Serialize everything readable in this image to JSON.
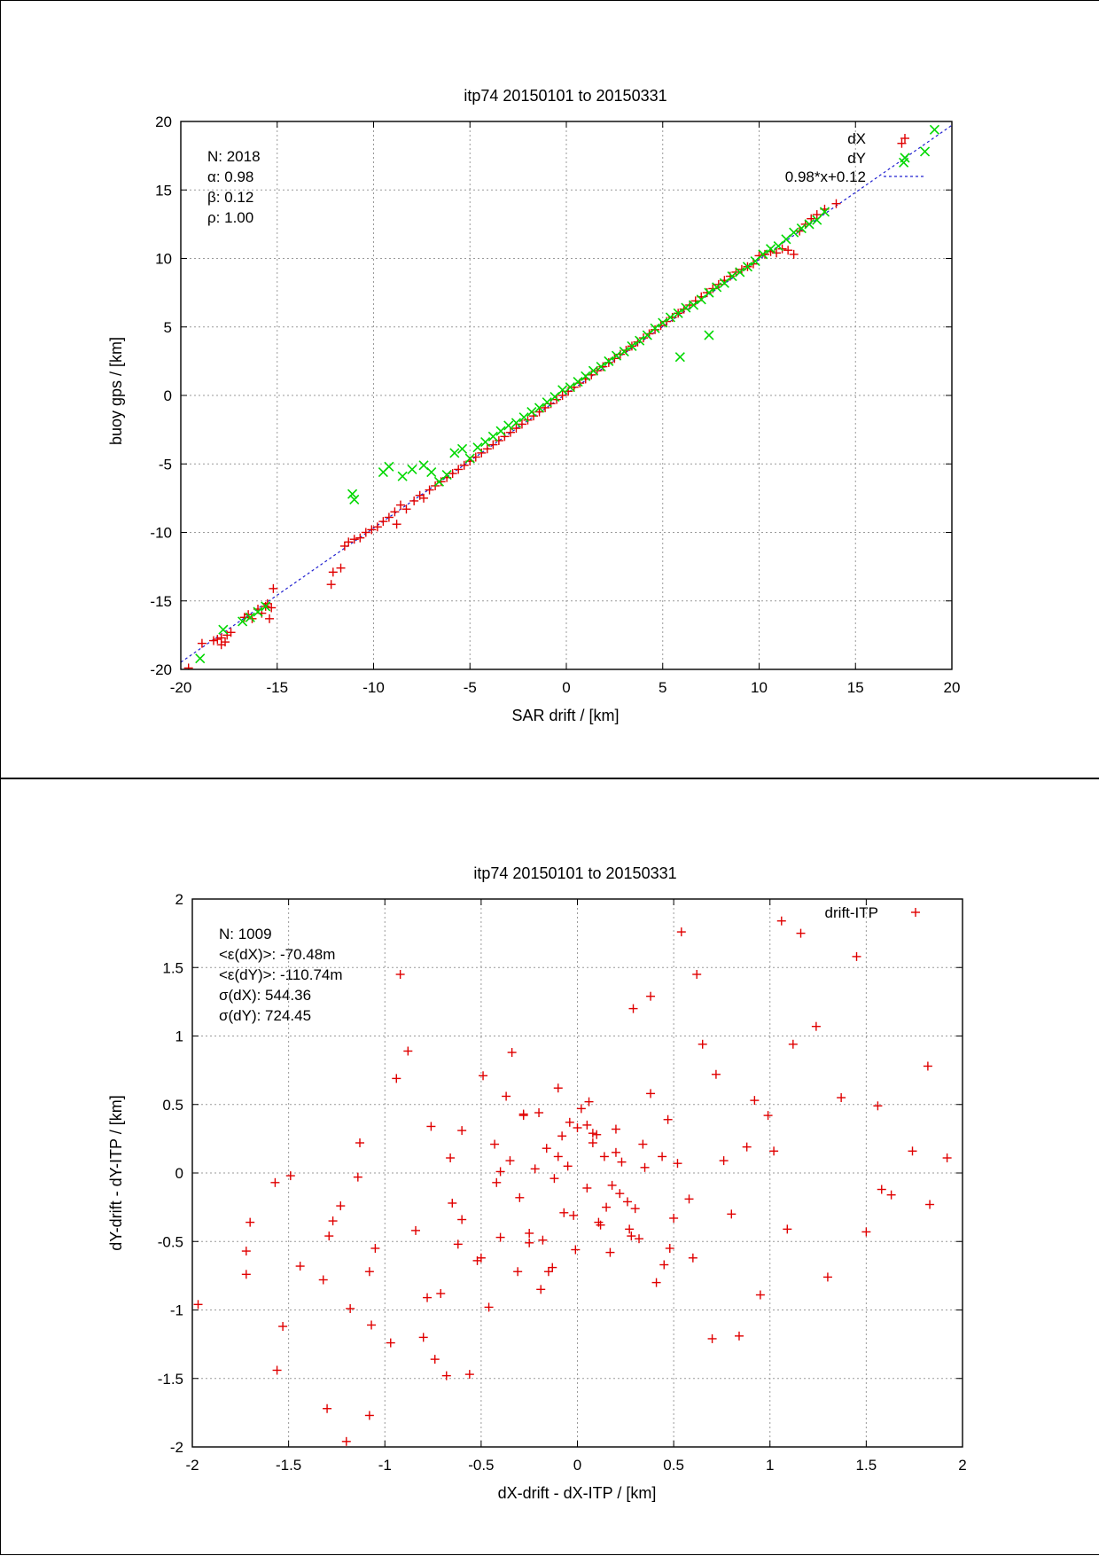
{
  "chart_data": [
    {
      "type": "scatter",
      "title": "itp74 20150101 to 20150331",
      "xlabel": "SAR drift / [km]",
      "ylabel": "buoy gps / [km]",
      "xlim": [
        -20,
        20
      ],
      "ylim": [
        -20,
        20
      ],
      "xticks": [
        -20,
        -15,
        -10,
        -5,
        0,
        5,
        10,
        15,
        20
      ],
      "yticks": [
        -20,
        -15,
        -10,
        -5,
        0,
        5,
        10,
        15,
        20
      ],
      "grid": true,
      "legend_position": "top-right",
      "stats": [
        "N: 2018",
        "α: 0.98",
        "β: 0.12",
        "ρ: 1.00"
      ],
      "fit": {
        "label": "0.98*x+0.12",
        "slope": 0.98,
        "intercept": 0.12,
        "color": "#2020d0"
      },
      "series": [
        {
          "name": "dX",
          "marker": "plus",
          "color": "#e00000",
          "x": [
            -19.6,
            -18.9,
            -18.3,
            -18.1,
            -17.9,
            -17.7,
            -17.9,
            -17.6,
            -17.4,
            -16.7,
            -16.5,
            -16.3,
            -16.0,
            -15.8,
            -15.6,
            -15.5,
            -15.3,
            -15.2,
            -15.4,
            -12.2,
            -12.1,
            -11.7,
            -11.5,
            -11.3,
            -11.0,
            -10.7,
            -10.4,
            -10.1,
            -9.8,
            -9.5,
            -9.2,
            -8.9,
            -8.6,
            -8.3,
            -8.8,
            -7.9,
            -7.6,
            -7.4,
            -7.1,
            -6.8,
            -6.5,
            -6.2,
            -5.9,
            -5.6,
            -5.3,
            -5.0,
            -4.7,
            -4.4,
            -4.1,
            -3.8,
            -3.5,
            -3.2,
            -2.9,
            -2.6,
            -2.3,
            -2.0,
            -1.7,
            -1.4,
            -1.1,
            -0.8,
            -0.5,
            -0.2,
            0.1,
            0.4,
            0.7,
            1.0,
            1.3,
            1.6,
            1.9,
            2.2,
            2.5,
            2.8,
            3.1,
            3.4,
            3.7,
            4.0,
            4.3,
            4.6,
            4.9,
            5.2,
            5.5,
            5.8,
            6.1,
            6.4,
            6.7,
            7.0,
            7.3,
            7.6,
            7.9,
            8.2,
            8.5,
            8.8,
            9.1,
            9.4,
            9.7,
            10.0,
            10.3,
            10.6,
            10.9,
            11.2,
            11.5,
            11.8,
            12.1,
            12.4,
            12.7,
            13.0,
            13.4,
            14.0,
            17.4
          ],
          "y": [
            -19.9,
            -18.1,
            -17.9,
            -17.8,
            -18.2,
            -18.0,
            -17.7,
            -17.5,
            -17.3,
            -16.2,
            -16.0,
            -16.3,
            -15.6,
            -15.9,
            -15.4,
            -15.2,
            -15.5,
            -14.1,
            -16.3,
            -13.8,
            -12.9,
            -12.6,
            -11.0,
            -10.7,
            -10.5,
            -10.4,
            -10.0,
            -9.8,
            -9.6,
            -9.2,
            -8.9,
            -8.5,
            -8.0,
            -8.3,
            -9.4,
            -7.7,
            -7.3,
            -7.5,
            -6.9,
            -6.6,
            -6.3,
            -6.0,
            -5.7,
            -5.4,
            -5.1,
            -4.8,
            -4.5,
            -4.2,
            -3.9,
            -3.6,
            -3.3,
            -3.0,
            -2.7,
            -2.4,
            -2.1,
            -1.8,
            -1.5,
            -1.2,
            -0.9,
            -0.6,
            -0.3,
            0.0,
            0.3,
            0.6,
            0.9,
            1.2,
            1.5,
            1.8,
            2.1,
            2.4,
            2.7,
            3.0,
            3.3,
            3.6,
            3.9,
            4.2,
            4.5,
            4.8,
            5.1,
            5.4,
            5.7,
            6.0,
            6.3,
            6.6,
            6.9,
            7.2,
            7.5,
            7.8,
            8.1,
            8.4,
            8.7,
            9.0,
            9.2,
            9.4,
            9.6,
            10.2,
            10.3,
            10.5,
            10.4,
            10.7,
            10.6,
            10.3,
            12.0,
            12.5,
            12.9,
            13.2,
            13.6,
            14.0,
            18.4
          ]
        },
        {
          "name": "dY",
          "marker": "cross",
          "color": "#00d800",
          "x": [
            -19.0,
            -17.8,
            -16.8,
            -16.4,
            -16.0,
            -15.6,
            -11.1,
            -11.0,
            -9.5,
            -9.2,
            -8.5,
            -8.0,
            -7.4,
            -7.0,
            -6.6,
            -6.2,
            -5.8,
            -5.4,
            -5.0,
            -4.6,
            -4.2,
            -3.8,
            -3.4,
            -3.0,
            -2.6,
            -2.2,
            -1.8,
            -1.4,
            -1.0,
            -0.6,
            -0.2,
            0.2,
            0.6,
            1.0,
            1.4,
            1.8,
            2.2,
            2.6,
            3.0,
            3.4,
            3.8,
            4.2,
            4.6,
            5.0,
            5.4,
            5.8,
            6.2,
            6.6,
            7.0,
            7.4,
            7.8,
            8.2,
            8.6,
            9.0,
            9.4,
            9.8,
            10.2,
            10.6,
            11.0,
            11.4,
            11.8,
            12.2,
            12.6,
            13.0,
            13.4,
            5.9,
            7.4,
            17.5,
            18.6,
            19.1
          ],
          "y": [
            -19.2,
            -17.1,
            -16.5,
            -16.2,
            -15.8,
            -15.4,
            -7.2,
            -7.6,
            -5.6,
            -5.2,
            -5.9,
            -5.4,
            -5.1,
            -5.6,
            -6.3,
            -5.8,
            -4.2,
            -3.9,
            -4.6,
            -3.8,
            -3.4,
            -3.0,
            -2.6,
            -2.2,
            -2.0,
            -1.6,
            -1.2,
            -0.9,
            -0.5,
            -0.1,
            0.4,
            0.6,
            1.0,
            1.4,
            1.8,
            2.1,
            2.5,
            2.9,
            3.2,
            3.6,
            4.0,
            4.4,
            4.9,
            5.3,
            5.7,
            6.0,
            6.4,
            6.6,
            7.0,
            7.5,
            7.9,
            8.2,
            8.7,
            9.0,
            9.4,
            9.8,
            10.3,
            10.7,
            10.9,
            11.4,
            11.9,
            12.2,
            12.5,
            12.8,
            13.4,
            2.8,
            4.4,
            17.0,
            17.8,
            19.4
          ]
        }
      ]
    },
    {
      "type": "scatter",
      "title": "itp74 20150101 to 20150331",
      "xlabel": "dX-drift - dX-ITP / [km]",
      "ylabel": "dY-drift - dY-ITP / [km]",
      "xlim": [
        -2,
        2
      ],
      "ylim": [
        -2,
        2
      ],
      "xticks": [
        -2,
        -1.5,
        -1,
        -0.5,
        0,
        0.5,
        1,
        1.5,
        2
      ],
      "yticks": [
        -2,
        -1.5,
        -1,
        -0.5,
        0,
        0.5,
        1,
        1.5,
        2
      ],
      "grid": true,
      "legend_position": "top-right",
      "stats": [
        "N: 1009",
        "<ε(dX)>:  -70.48m",
        "<ε(dY)>: -110.74m",
        "σ(dX):  544.36",
        "σ(dY):  724.45"
      ],
      "series": [
        {
          "name": "drift-ITP",
          "marker": "plus",
          "color": "#e00000",
          "x": [
            -1.97,
            -1.72,
            -1.72,
            -1.7,
            -1.57,
            -1.56,
            -1.53,
            -1.49,
            -1.44,
            -1.32,
            -1.3,
            -1.29,
            -1.27,
            -1.23,
            -1.2,
            -1.18,
            -1.14,
            -1.13,
            -1.08,
            -1.08,
            -1.07,
            -1.05,
            -0.97,
            -0.94,
            -0.92,
            -0.88,
            -0.84,
            -0.8,
            -0.78,
            -0.76,
            -0.74,
            -0.71,
            -0.68,
            -0.66,
            -0.62,
            -0.6,
            -0.56,
            -0.52,
            -0.49,
            -0.46,
            -0.43,
            -0.4,
            -0.37,
            -0.34,
            -0.31,
            -0.28,
            -0.25,
            -0.22,
            -0.19,
            -0.16,
            -0.13,
            -0.1,
            -0.07,
            -0.04,
            -0.01,
            0.02,
            0.05,
            0.08,
            0.11,
            0.14,
            0.17,
            0.2,
            0.23,
            0.26,
            0.29,
            0.32,
            0.35,
            0.38,
            0.41,
            0.44,
            0.47,
            0.5,
            0.54,
            0.58,
            0.62,
            0.65,
            0.7,
            0.72,
            0.76,
            0.8,
            0.84,
            0.88,
            0.92,
            0.95,
            0.99,
            1.02,
            1.06,
            1.09,
            1.12,
            1.16,
            1.24,
            1.3,
            1.37,
            1.45,
            1.5,
            1.56,
            1.58,
            1.63,
            1.74,
            1.82,
            1.83,
            1.92,
            -0.1,
            0.15,
            0.27,
            -0.2,
            0.6,
            0.05,
            -0.3,
            0.34,
            -0.05,
            0.48,
            -0.42,
            0.1,
            -0.6,
            0.2,
            -0.15,
            0.38,
            -0.25,
            0.0,
            -0.5,
            0.3,
            -0.35,
            0.12,
            -0.08,
            0.22,
            -0.18,
            0.06,
            -0.4,
            0.45,
            -0.65,
            0.52,
            -0.02,
            0.18,
            -0.28,
            0.28,
            -0.12,
            0.08
          ],
          "y": [
            -0.96,
            -0.57,
            -0.74,
            -0.36,
            -0.07,
            -1.44,
            -1.12,
            -0.02,
            -0.68,
            -0.78,
            -1.72,
            -0.46,
            -0.35,
            -0.24,
            -1.96,
            -0.99,
            -0.03,
            0.22,
            -1.77,
            -0.72,
            -1.11,
            -0.55,
            -1.24,
            0.69,
            1.45,
            0.89,
            -0.42,
            -1.2,
            -0.91,
            0.34,
            -1.36,
            -0.88,
            -1.48,
            0.11,
            -0.52,
            0.31,
            -1.47,
            -0.64,
            0.71,
            -0.98,
            0.21,
            -0.47,
            0.56,
            0.88,
            -0.72,
            0.42,
            -0.51,
            0.03,
            -0.85,
            0.18,
            -0.69,
            0.62,
            -0.29,
            0.37,
            -0.56,
            0.47,
            -0.11,
            0.22,
            -0.36,
            0.12,
            -0.58,
            0.32,
            0.08,
            -0.21,
            1.2,
            -0.48,
            0.04,
            1.29,
            -0.8,
            0.12,
            0.39,
            -0.33,
            1.76,
            -0.19,
            1.45,
            0.94,
            -1.21,
            0.72,
            0.09,
            -0.3,
            -1.19,
            0.19,
            0.53,
            -0.89,
            0.42,
            0.16,
            1.84,
            -0.41,
            0.94,
            1.75,
            1.07,
            -0.76,
            0.55,
            1.58,
            -0.43,
            0.49,
            -0.12,
            -0.16,
            0.16,
            0.78,
            -0.23,
            0.11,
            0.12,
            -0.25,
            -0.41,
            0.44,
            -0.62,
            0.35,
            -0.18,
            0.21,
            0.05,
            -0.55,
            -0.07,
            0.28,
            -0.34,
            0.15,
            -0.72,
            0.58,
            -0.44,
            0.33,
            -0.62,
            -0.26,
            0.09,
            -0.38,
            0.27,
            -0.15,
            -0.49,
            0.52,
            0.01,
            -0.67,
            -0.22,
            0.07,
            -0.31,
            -0.09,
            0.43,
            -0.46,
            -0.04,
            0.29
          ]
        }
      ]
    }
  ]
}
